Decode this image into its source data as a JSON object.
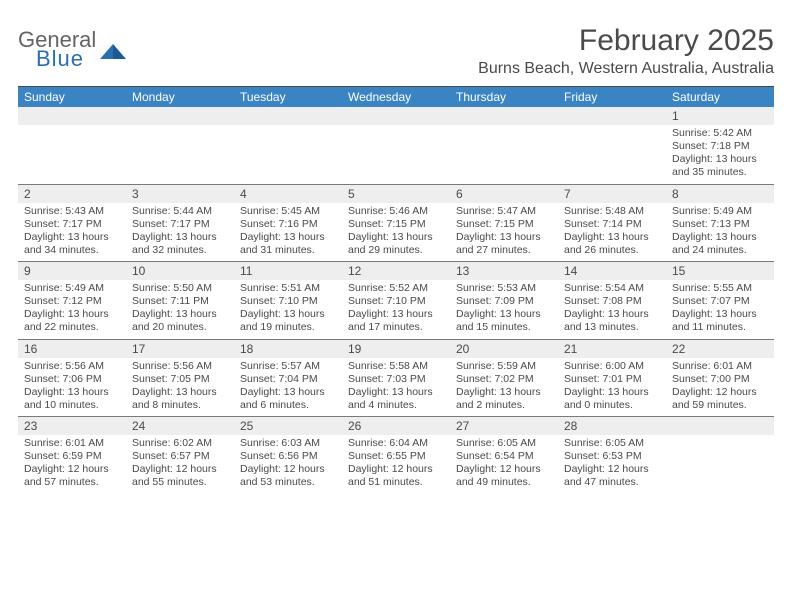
{
  "logo": {
    "general": "General",
    "blue": "Blue"
  },
  "title": "February 2025",
  "location": "Burns Beach, Western Australia, Australia",
  "colors": {
    "header_bg": "#3b84c4",
    "header_text": "#ffffff",
    "body_text": "#4a4a4a",
    "daynum_bg": "#eeeeee",
    "rule": "#7a7a7a",
    "logo_gray": "#646464",
    "logo_blue": "#2a6fb0"
  },
  "day_names": [
    "Sunday",
    "Monday",
    "Tuesday",
    "Wednesday",
    "Thursday",
    "Friday",
    "Saturday"
  ],
  "weeks": [
    [
      {
        "n": "",
        "sunrise": "",
        "sunset": "",
        "daylight": ""
      },
      {
        "n": "",
        "sunrise": "",
        "sunset": "",
        "daylight": ""
      },
      {
        "n": "",
        "sunrise": "",
        "sunset": "",
        "daylight": ""
      },
      {
        "n": "",
        "sunrise": "",
        "sunset": "",
        "daylight": ""
      },
      {
        "n": "",
        "sunrise": "",
        "sunset": "",
        "daylight": ""
      },
      {
        "n": "",
        "sunrise": "",
        "sunset": "",
        "daylight": ""
      },
      {
        "n": "1",
        "sunrise": "Sunrise: 5:42 AM",
        "sunset": "Sunset: 7:18 PM",
        "daylight": "Daylight: 13 hours and 35 minutes."
      }
    ],
    [
      {
        "n": "2",
        "sunrise": "Sunrise: 5:43 AM",
        "sunset": "Sunset: 7:17 PM",
        "daylight": "Daylight: 13 hours and 34 minutes."
      },
      {
        "n": "3",
        "sunrise": "Sunrise: 5:44 AM",
        "sunset": "Sunset: 7:17 PM",
        "daylight": "Daylight: 13 hours and 32 minutes."
      },
      {
        "n": "4",
        "sunrise": "Sunrise: 5:45 AM",
        "sunset": "Sunset: 7:16 PM",
        "daylight": "Daylight: 13 hours and 31 minutes."
      },
      {
        "n": "5",
        "sunrise": "Sunrise: 5:46 AM",
        "sunset": "Sunset: 7:15 PM",
        "daylight": "Daylight: 13 hours and 29 minutes."
      },
      {
        "n": "6",
        "sunrise": "Sunrise: 5:47 AM",
        "sunset": "Sunset: 7:15 PM",
        "daylight": "Daylight: 13 hours and 27 minutes."
      },
      {
        "n": "7",
        "sunrise": "Sunrise: 5:48 AM",
        "sunset": "Sunset: 7:14 PM",
        "daylight": "Daylight: 13 hours and 26 minutes."
      },
      {
        "n": "8",
        "sunrise": "Sunrise: 5:49 AM",
        "sunset": "Sunset: 7:13 PM",
        "daylight": "Daylight: 13 hours and 24 minutes."
      }
    ],
    [
      {
        "n": "9",
        "sunrise": "Sunrise: 5:49 AM",
        "sunset": "Sunset: 7:12 PM",
        "daylight": "Daylight: 13 hours and 22 minutes."
      },
      {
        "n": "10",
        "sunrise": "Sunrise: 5:50 AM",
        "sunset": "Sunset: 7:11 PM",
        "daylight": "Daylight: 13 hours and 20 minutes."
      },
      {
        "n": "11",
        "sunrise": "Sunrise: 5:51 AM",
        "sunset": "Sunset: 7:10 PM",
        "daylight": "Daylight: 13 hours and 19 minutes."
      },
      {
        "n": "12",
        "sunrise": "Sunrise: 5:52 AM",
        "sunset": "Sunset: 7:10 PM",
        "daylight": "Daylight: 13 hours and 17 minutes."
      },
      {
        "n": "13",
        "sunrise": "Sunrise: 5:53 AM",
        "sunset": "Sunset: 7:09 PM",
        "daylight": "Daylight: 13 hours and 15 minutes."
      },
      {
        "n": "14",
        "sunrise": "Sunrise: 5:54 AM",
        "sunset": "Sunset: 7:08 PM",
        "daylight": "Daylight: 13 hours and 13 minutes."
      },
      {
        "n": "15",
        "sunrise": "Sunrise: 5:55 AM",
        "sunset": "Sunset: 7:07 PM",
        "daylight": "Daylight: 13 hours and 11 minutes."
      }
    ],
    [
      {
        "n": "16",
        "sunrise": "Sunrise: 5:56 AM",
        "sunset": "Sunset: 7:06 PM",
        "daylight": "Daylight: 13 hours and 10 minutes."
      },
      {
        "n": "17",
        "sunrise": "Sunrise: 5:56 AM",
        "sunset": "Sunset: 7:05 PM",
        "daylight": "Daylight: 13 hours and 8 minutes."
      },
      {
        "n": "18",
        "sunrise": "Sunrise: 5:57 AM",
        "sunset": "Sunset: 7:04 PM",
        "daylight": "Daylight: 13 hours and 6 minutes."
      },
      {
        "n": "19",
        "sunrise": "Sunrise: 5:58 AM",
        "sunset": "Sunset: 7:03 PM",
        "daylight": "Daylight: 13 hours and 4 minutes."
      },
      {
        "n": "20",
        "sunrise": "Sunrise: 5:59 AM",
        "sunset": "Sunset: 7:02 PM",
        "daylight": "Daylight: 13 hours and 2 minutes."
      },
      {
        "n": "21",
        "sunrise": "Sunrise: 6:00 AM",
        "sunset": "Sunset: 7:01 PM",
        "daylight": "Daylight: 13 hours and 0 minutes."
      },
      {
        "n": "22",
        "sunrise": "Sunrise: 6:01 AM",
        "sunset": "Sunset: 7:00 PM",
        "daylight": "Daylight: 12 hours and 59 minutes."
      }
    ],
    [
      {
        "n": "23",
        "sunrise": "Sunrise: 6:01 AM",
        "sunset": "Sunset: 6:59 PM",
        "daylight": "Daylight: 12 hours and 57 minutes."
      },
      {
        "n": "24",
        "sunrise": "Sunrise: 6:02 AM",
        "sunset": "Sunset: 6:57 PM",
        "daylight": "Daylight: 12 hours and 55 minutes."
      },
      {
        "n": "25",
        "sunrise": "Sunrise: 6:03 AM",
        "sunset": "Sunset: 6:56 PM",
        "daylight": "Daylight: 12 hours and 53 minutes."
      },
      {
        "n": "26",
        "sunrise": "Sunrise: 6:04 AM",
        "sunset": "Sunset: 6:55 PM",
        "daylight": "Daylight: 12 hours and 51 minutes."
      },
      {
        "n": "27",
        "sunrise": "Sunrise: 6:05 AM",
        "sunset": "Sunset: 6:54 PM",
        "daylight": "Daylight: 12 hours and 49 minutes."
      },
      {
        "n": "28",
        "sunrise": "Sunrise: 6:05 AM",
        "sunset": "Sunset: 6:53 PM",
        "daylight": "Daylight: 12 hours and 47 minutes."
      },
      {
        "n": "",
        "sunrise": "",
        "sunset": "",
        "daylight": ""
      }
    ]
  ]
}
